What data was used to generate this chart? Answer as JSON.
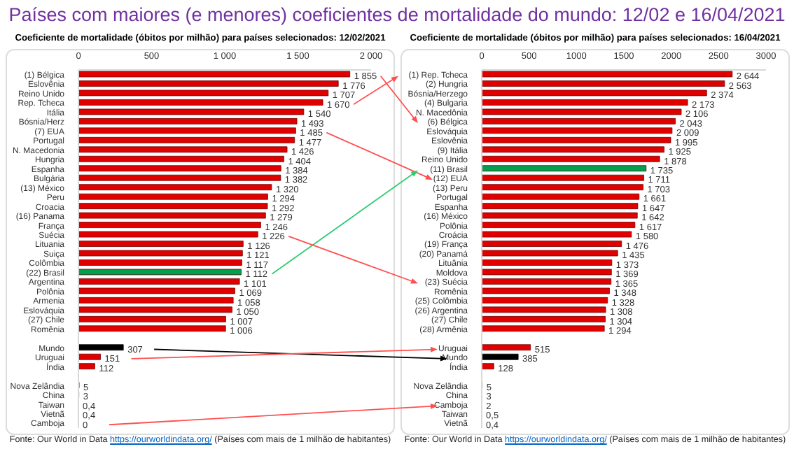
{
  "chart_data": [
    {
      "type": "bar",
      "orientation": "horizontal",
      "title": "Países com maiores (e menores) coeficientes de mortalidade do mundo: 12/02 e 16/04/2021",
      "subtitle": "Coeficiente de mortalidade (óbitos por milhão) para países selecionados: 12/02/2021",
      "categories": [
        "(1) Bélgica",
        "Eslovênia",
        "Reino Unido",
        "Rep. Tcheca",
        "Itália",
        "Bósnia/Herz",
        "(7) EUA",
        "Portugal",
        "N. Macedonia",
        "Hungria",
        "Espanha",
        "Bulgária",
        "(13) México",
        "Peru",
        "Croacia",
        "(16) Panama",
        "França",
        "Suécia",
        "Lituania",
        "Suiça",
        "Colômbia",
        "(22) Brasil",
        "Argentina",
        "Polônia",
        "Armenia",
        "Eslováquia",
        "(27) Chile",
        "Romênia",
        null,
        "Mundo",
        "Uruguai",
        "Índia",
        null,
        "Nova Zelândia",
        "China",
        "Taiwan",
        "Vietnã",
        "Camboja"
      ],
      "values": [
        1855,
        1776,
        1707,
        1670,
        1540,
        1493,
        1485,
        1477,
        1426,
        1404,
        1384,
        1382,
        1320,
        1294,
        1292,
        1279,
        1246,
        1226,
        1126,
        1121,
        1117,
        1112,
        1101,
        1069,
        1058,
        1050,
        1007,
        1006,
        null,
        307,
        151,
        112,
        null,
        5,
        3,
        0.4,
        0.4,
        0
      ],
      "value_labels": [
        "1 855",
        "1 776",
        "1 707",
        "1 670",
        "1 540",
        "1 493",
        "1 485",
        "1 477",
        "1 426",
        "1 404",
        "1 384",
        "1 382",
        "1 320",
        "1 294",
        "1 292",
        "1 279",
        "1 246",
        "1 226",
        "1 126",
        "1 121",
        "1 117",
        "1 112",
        "1 101",
        "1 069",
        "1 058",
        "1 050",
        "1 007",
        "1 006",
        null,
        "307",
        "151",
        "112",
        null,
        "5",
        "3",
        "0,4",
        "0,4",
        "0"
      ],
      "colors": [
        "#e00000",
        "#e00000",
        "#e00000",
        "#e00000",
        "#e00000",
        "#e00000",
        "#e00000",
        "#e00000",
        "#e00000",
        "#e00000",
        "#e00000",
        "#e00000",
        "#e00000",
        "#e00000",
        "#e00000",
        "#e00000",
        "#e00000",
        "#e00000",
        "#e00000",
        "#e00000",
        "#e00000",
        "#00a050",
        "#e00000",
        "#e00000",
        "#e00000",
        "#e00000",
        "#e00000",
        "#e00000",
        "#e00000",
        "#000000",
        "#e00000",
        "#e00000",
        "#e00000",
        "#e00000",
        "#e00000",
        "#e00000",
        "#e00000",
        "#e00000"
      ],
      "xlim": [
        0,
        2000
      ],
      "xticks": [
        0,
        500,
        {
          "value": 1000,
          "label": "1 000"
        },
        {
          "value": 1500,
          "label": "1 500"
        },
        {
          "value": 2000,
          "label": "2 000"
        }
      ],
      "grid": false,
      "legend": false,
      "annotations": [
        "Fonte: Our World in Data https://ourworldindata.org/ (Países com mais de 1 milhão de habitantes)"
      ]
    },
    {
      "type": "bar",
      "orientation": "horizontal",
      "subtitle": "Coeficiente de mortalidade (óbitos por milhão) para países selecionados: 16/04/2021",
      "categories": [
        "(1) Rep. Tcheca",
        "(2) Hungria",
        "Bósnia/Herzego",
        "(4) Bulgaria",
        "N. Macedônia",
        "(6) Bélgica",
        "Eslováquia",
        "Eslovênia",
        "(9) Itália",
        "Reino Unido",
        "(11) Brasil",
        "(12) EUA",
        "(13) Peru",
        "Portugal",
        "Espanha",
        "(16) México",
        "Polônia",
        "Croácia",
        "(19) França",
        "(20) Panamá",
        "Lituânia",
        "Moldova",
        "(23) Suécia",
        "Romênia",
        "(25) Colômbia",
        "(26) Argentina",
        "(27) Chile",
        "(28) Armênia",
        null,
        "Uruguai",
        "Mundo",
        "Índia",
        null,
        "Nova Zelândia",
        "China",
        "Camboja",
        "Taiwan",
        "Vietnã"
      ],
      "values": [
        2644,
        2563,
        2374,
        2173,
        2106,
        2043,
        2009,
        1995,
        1925,
        1878,
        1735,
        1711,
        1703,
        1661,
        1647,
        1642,
        1617,
        1580,
        1476,
        1435,
        1373,
        1369,
        1365,
        1348,
        1328,
        1308,
        1304,
        1294,
        null,
        515,
        385,
        128,
        null,
        5,
        3,
        2,
        0.5,
        0.4
      ],
      "value_labels": [
        "2 644",
        "2 563",
        "2 374",
        "2 173",
        "2 106",
        "2 043",
        "2 009",
        "1 995",
        "1 925",
        "1 878",
        "1 735",
        "1 711",
        "1 703",
        "1 661",
        "1 647",
        "1 642",
        "1 617",
        "1 580",
        "1 476",
        "1 435",
        "1 373",
        "1 369",
        "1 365",
        "1 348",
        "1 328",
        "1 308",
        "1 304",
        "1 294",
        null,
        "515",
        "385",
        "128",
        null,
        "5",
        "3",
        "2",
        "0,5",
        "0,4"
      ],
      "colors": [
        "#e00000",
        "#e00000",
        "#e00000",
        "#e00000",
        "#e00000",
        "#e00000",
        "#e00000",
        "#e00000",
        "#e00000",
        "#e00000",
        "#00a050",
        "#e00000",
        "#e00000",
        "#e00000",
        "#e00000",
        "#e00000",
        "#e00000",
        "#e00000",
        "#e00000",
        "#e00000",
        "#e00000",
        "#e00000",
        "#e00000",
        "#e00000",
        "#e00000",
        "#e00000",
        "#e00000",
        "#e00000",
        "#e00000",
        "#e00000",
        "#000000",
        "#e00000",
        "#e00000",
        "#e00000",
        "#e00000",
        "#e00000",
        "#e00000",
        "#e00000"
      ],
      "xlim": [
        0,
        3000
      ],
      "xticks": [
        0,
        500,
        1000,
        1500,
        2000,
        2500,
        3000
      ],
      "grid": false,
      "legend": false,
      "annotations": [
        "Fonte: Our World in Data https://ourworldindata.org/ (Países com mais de 1 milhão de habitantes)"
      ]
    }
  ]
}
